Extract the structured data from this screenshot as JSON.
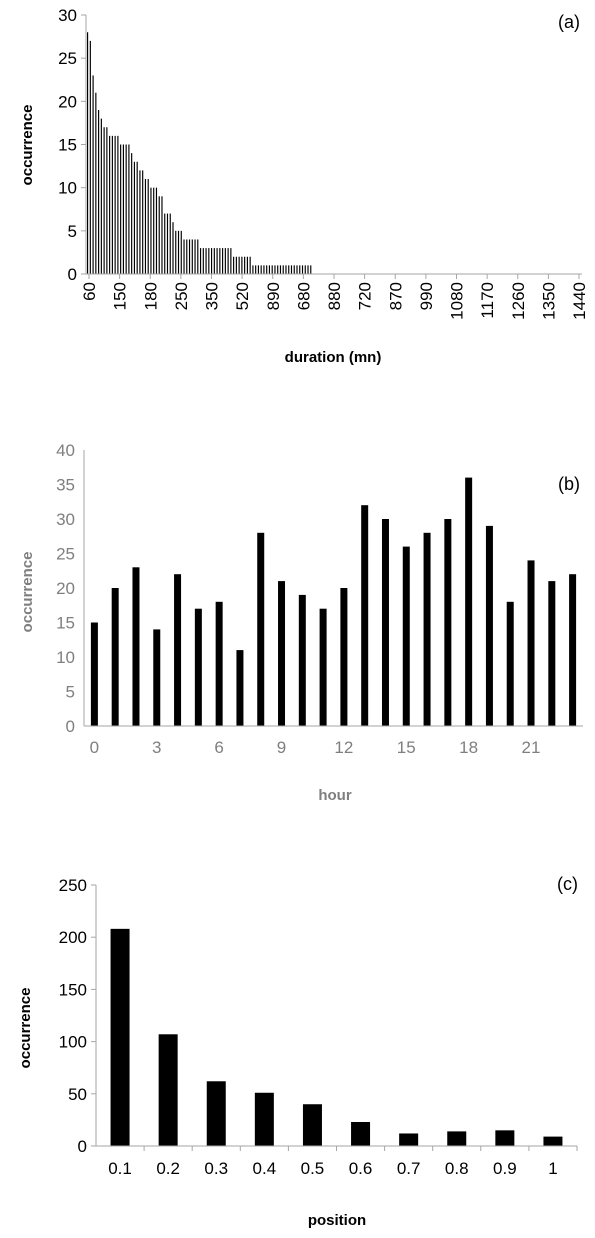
{
  "chart_data": [
    {
      "type": "bar",
      "panel_label": "(a)",
      "xlabel": "duration (mn)",
      "ylabel": "occurrence",
      "ylim": [
        0,
        30
      ],
      "yticks": [
        0,
        5,
        10,
        15,
        20,
        25,
        30
      ],
      "xtick_labels": [
        "60",
        "150",
        "180",
        "250",
        "350",
        "520",
        "890",
        "680",
        "880",
        "720",
        "870",
        "990",
        "1080",
        "1170",
        "1260",
        "1350",
        "1440"
      ],
      "values": [
        28,
        27,
        23,
        21,
        19,
        18,
        17,
        17,
        16,
        16,
        16,
        16,
        15,
        15,
        15,
        15,
        14,
        13,
        13,
        12,
        12,
        11,
        11,
        10,
        10,
        10,
        9,
        9,
        7,
        7,
        7,
        6,
        5,
        5,
        5,
        4,
        4,
        4,
        4,
        4,
        4,
        3,
        3,
        3,
        3,
        3,
        3,
        3,
        3,
        3,
        3,
        3,
        3,
        2,
        2,
        2,
        2,
        2,
        2,
        2,
        1,
        1,
        1,
        1,
        1,
        1,
        1,
        1,
        1,
        1,
        1,
        1,
        1,
        1,
        1,
        1,
        1,
        1,
        1,
        1,
        1,
        1
      ],
      "x_slots": 180,
      "grid": false
    },
    {
      "type": "bar",
      "panel_label": "(b)",
      "xlabel": "hour",
      "ylabel": "occurrence",
      "ylim": [
        0,
        40
      ],
      "yticks": [
        0,
        5,
        10,
        15,
        20,
        25,
        30,
        35,
        40
      ],
      "categories": [
        "0",
        "1",
        "2",
        "3",
        "4",
        "5",
        "6",
        "7",
        "8",
        "9",
        "10",
        "11",
        "12",
        "13",
        "14",
        "15",
        "16",
        "17",
        "18",
        "19",
        "20",
        "21",
        "22",
        "23"
      ],
      "xtick_labels": [
        "0",
        "3",
        "6",
        "9",
        "12",
        "15",
        "18",
        "21"
      ],
      "values": [
        15,
        20,
        23,
        14,
        22,
        17,
        18,
        11,
        28,
        21,
        19,
        17,
        20,
        32,
        30,
        26,
        28,
        30,
        36,
        29,
        18,
        24,
        21,
        22
      ],
      "grid": false
    },
    {
      "type": "bar",
      "panel_label": "(c)",
      "xlabel": "position",
      "ylabel": "occurrence",
      "ylim": [
        0,
        250
      ],
      "yticks": [
        0,
        50,
        100,
        150,
        200,
        250
      ],
      "categories": [
        "0.1",
        "0.2",
        "0.3",
        "0.4",
        "0.5",
        "0.6",
        "0.7",
        "0.8",
        "0.9",
        "1"
      ],
      "values": [
        208,
        107,
        62,
        51,
        40,
        23,
        12,
        14,
        15,
        9
      ],
      "grid": false
    }
  ]
}
